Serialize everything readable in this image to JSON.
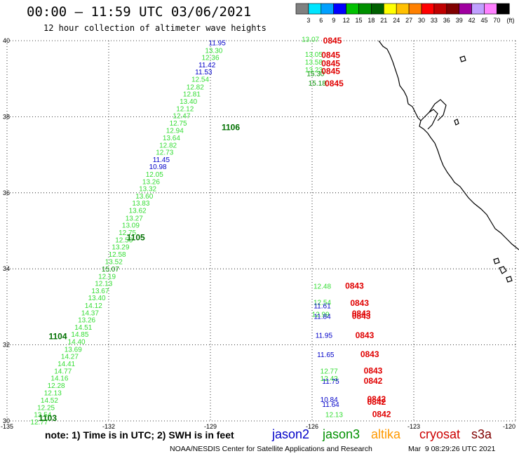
{
  "header": {
    "title": "00:00 – 11:59 UTC 03/06/2021",
    "subtitle": "12 hour collection of altimeter wave heights"
  },
  "scale_bar": {
    "labels": [
      "3",
      "6",
      "9",
      "12",
      "15",
      "18",
      "21",
      "24",
      "27",
      "30",
      "33",
      "36",
      "39",
      "42",
      "45",
      "70"
    ],
    "unit": "(ft)",
    "colors": [
      "#808080",
      "#00e5ff",
      "#00a0ff",
      "#0000ff",
      "#00c000",
      "#009000",
      "#006000",
      "#ffff00",
      "#ffc000",
      "#ff8000",
      "#ff0000",
      "#c00000",
      "#800000",
      "#a000a0",
      "#c0a0ff",
      "#ff80ff",
      "#000000"
    ]
  },
  "map": {
    "lat_ticks": [
      40,
      38,
      36,
      34,
      32,
      30
    ],
    "lon_ticks": [
      -135,
      -132,
      -129,
      -126,
      -123,
      -120
    ],
    "lat_labels": [
      "40",
      "38",
      "36",
      "34",
      "32",
      "30"
    ],
    "lon_labels": [
      "-135",
      "-132",
      "-129",
      "-126",
      "-123",
      "-120"
    ],
    "track_times": [
      {
        "text": "1106",
        "lon": -128.4,
        "lat": 37.65
      },
      {
        "text": "1105",
        "lon": -131.2,
        "lat": 34.75
      },
      {
        "text": "1104",
        "lon": -133.5,
        "lat": 32.15
      },
      {
        "text": "1103",
        "lon": -133.8,
        "lat": 30.0
      }
    ],
    "swh_track": [
      {
        "v": "11.95",
        "c": "#0000c8",
        "lon": -128.8,
        "lat": 39.88
      },
      {
        "v": "13.30",
        "c": "#33dd33",
        "lon": -128.9,
        "lat": 39.68
      },
      {
        "v": "12.36",
        "c": "#33dd33",
        "lon": -129.0,
        "lat": 39.49
      },
      {
        "v": "11.42",
        "c": "#0000c8",
        "lon": -129.1,
        "lat": 39.3
      },
      {
        "v": "11.53",
        "c": "#0000c8",
        "lon": -129.2,
        "lat": 39.11
      },
      {
        "v": "12.54",
        "c": "#33dd33",
        "lon": -129.3,
        "lat": 38.92
      },
      {
        "v": "12.82",
        "c": "#33dd33",
        "lon": -129.45,
        "lat": 38.72
      },
      {
        "v": "12.81",
        "c": "#33dd33",
        "lon": -129.55,
        "lat": 38.53
      },
      {
        "v": "13.40",
        "c": "#33dd33",
        "lon": -129.65,
        "lat": 38.34
      },
      {
        "v": "12.12",
        "c": "#33dd33",
        "lon": -129.75,
        "lat": 38.15
      },
      {
        "v": "12.47",
        "c": "#33dd33",
        "lon": -129.85,
        "lat": 37.96
      },
      {
        "v": "12.75",
        "c": "#33dd33",
        "lon": -129.95,
        "lat": 37.77
      },
      {
        "v": "12.94",
        "c": "#33dd33",
        "lon": -130.05,
        "lat": 37.57
      },
      {
        "v": "13.64",
        "c": "#33dd33",
        "lon": -130.15,
        "lat": 37.38
      },
      {
        "v": "12.82",
        "c": "#33dd33",
        "lon": -130.25,
        "lat": 37.19
      },
      {
        "v": "12.73",
        "c": "#33dd33",
        "lon": -130.35,
        "lat": 37.0
      },
      {
        "v": "11.45",
        "c": "#0000c8",
        "lon": -130.45,
        "lat": 36.81
      },
      {
        "v": "10.98",
        "c": "#0000c8",
        "lon": -130.55,
        "lat": 36.62
      },
      {
        "v": "12.05",
        "c": "#33dd33",
        "lon": -130.65,
        "lat": 36.42
      },
      {
        "v": "13.26",
        "c": "#33dd33",
        "lon": -130.75,
        "lat": 36.23
      },
      {
        "v": "13.32",
        "c": "#33dd33",
        "lon": -130.85,
        "lat": 36.04
      },
      {
        "v": "13.60",
        "c": "#33dd33",
        "lon": -130.95,
        "lat": 35.85
      },
      {
        "v": "13.83",
        "c": "#33dd33",
        "lon": -131.05,
        "lat": 35.66
      },
      {
        "v": "13.62",
        "c": "#33dd33",
        "lon": -131.15,
        "lat": 35.47
      },
      {
        "v": "13.27",
        "c": "#33dd33",
        "lon": -131.25,
        "lat": 35.27
      },
      {
        "v": "13.09",
        "c": "#33dd33",
        "lon": -131.35,
        "lat": 35.08
      },
      {
        "v": "12.75",
        "c": "#33dd33",
        "lon": -131.45,
        "lat": 34.89
      },
      {
        "v": "12.50",
        "c": "#33dd33",
        "lon": -131.55,
        "lat": 34.7
      },
      {
        "v": "13.29",
        "c": "#33dd33",
        "lon": -131.65,
        "lat": 34.51
      },
      {
        "v": "12.58",
        "c": "#33dd33",
        "lon": -131.75,
        "lat": 34.32
      },
      {
        "v": "13.52",
        "c": "#33dd33",
        "lon": -131.85,
        "lat": 34.12
      },
      {
        "v": "15.07",
        "c": "#009000",
        "lon": -131.95,
        "lat": 33.93
      },
      {
        "v": "12.19",
        "c": "#33dd33",
        "lon": -132.05,
        "lat": 33.74
      },
      {
        "v": "12.13",
        "c": "#33dd33",
        "lon": -132.15,
        "lat": 33.55
      },
      {
        "v": "13.67",
        "c": "#33dd33",
        "lon": -132.25,
        "lat": 33.36
      },
      {
        "v": "13.40",
        "c": "#33dd33",
        "lon": -132.35,
        "lat": 33.17
      },
      {
        "v": "14.12",
        "c": "#33dd33",
        "lon": -132.45,
        "lat": 32.97
      },
      {
        "v": "14.37",
        "c": "#33dd33",
        "lon": -132.55,
        "lat": 32.78
      },
      {
        "v": "13.26",
        "c": "#33dd33",
        "lon": -132.65,
        "lat": 32.59
      },
      {
        "v": "14.51",
        "c": "#33dd33",
        "lon": -132.75,
        "lat": 32.4
      },
      {
        "v": "14.85",
        "c": "#33dd33",
        "lon": -132.85,
        "lat": 32.21
      },
      {
        "v": "14.40",
        "c": "#33dd33",
        "lon": -132.95,
        "lat": 32.02
      },
      {
        "v": "13.69",
        "c": "#33dd33",
        "lon": -133.05,
        "lat": 31.82
      },
      {
        "v": "14.27",
        "c": "#33dd33",
        "lon": -133.15,
        "lat": 31.63
      },
      {
        "v": "14.41",
        "c": "#33dd33",
        "lon": -133.25,
        "lat": 31.44
      },
      {
        "v": "14.77",
        "c": "#33dd33",
        "lon": -133.35,
        "lat": 31.25
      },
      {
        "v": "14.16",
        "c": "#33dd33",
        "lon": -133.45,
        "lat": 31.06
      },
      {
        "v": "12.28",
        "c": "#33dd33",
        "lon": -133.55,
        "lat": 30.87
      },
      {
        "v": "12.13",
        "c": "#33dd33",
        "lon": -133.65,
        "lat": 30.67
      },
      {
        "v": "14.52",
        "c": "#33dd33",
        "lon": -133.75,
        "lat": 30.48
      },
      {
        "v": "12.25",
        "c": "#33dd33",
        "lon": -133.85,
        "lat": 30.29
      },
      {
        "v": "13.54",
        "c": "#33dd33",
        "lon": -133.95,
        "lat": 30.1
      },
      {
        "v": "12.77",
        "c": "#33dd33",
        "lon": -134.05,
        "lat": 29.91
      }
    ],
    "coastal_swh": [
      {
        "v": "13.07",
        "c": "#33dd33",
        "lon": -126.05,
        "lat": 39.97
      },
      {
        "v": "13.05",
        "c": "#33dd33",
        "lon": -125.95,
        "lat": 39.58
      },
      {
        "v": "13.58",
        "c": "#33dd33",
        "lon": -125.95,
        "lat": 39.37
      },
      {
        "v": "13.23",
        "c": "#33dd33",
        "lon": -125.95,
        "lat": 39.17
      },
      {
        "v": "15.30",
        "c": "#009000",
        "lon": -125.9,
        "lat": 39.07
      },
      {
        "v": "15.18",
        "c": "#009000",
        "lon": -125.85,
        "lat": 38.82
      },
      {
        "v": "12.48",
        "c": "#33dd33",
        "lon": -125.7,
        "lat": 33.48
      },
      {
        "v": "12.54",
        "c": "#33dd33",
        "lon": -125.7,
        "lat": 33.05
      },
      {
        "v": "11.61",
        "c": "#0000c8",
        "lon": -125.7,
        "lat": 32.96
      },
      {
        "v": "12.99",
        "c": "#33dd33",
        "lon": -125.75,
        "lat": 32.74
      },
      {
        "v": "11.84",
        "c": "#0000c8",
        "lon": -125.7,
        "lat": 32.68
      },
      {
        "v": "11.95",
        "c": "#0000c8",
        "lon": -125.65,
        "lat": 32.19
      },
      {
        "v": "11.65",
        "c": "#0000c8",
        "lon": -125.6,
        "lat": 31.68
      },
      {
        "v": "12.77",
        "c": "#33dd33",
        "lon": -125.5,
        "lat": 31.25
      },
      {
        "v": "12.43",
        "c": "#33dd33",
        "lon": -125.5,
        "lat": 31.05
      },
      {
        "v": "11.75",
        "c": "#0000c8",
        "lon": -125.45,
        "lat": 30.98
      },
      {
        "v": "10.84",
        "c": "#0000c8",
        "lon": -125.5,
        "lat": 30.5
      },
      {
        "v": "11.64",
        "c": "#0000c8",
        "lon": -125.45,
        "lat": 30.37
      },
      {
        "v": "12.13",
        "c": "#33dd33",
        "lon": -125.35,
        "lat": 30.1
      }
    ],
    "coastal_times": [
      {
        "text": "0845",
        "lon": -125.4,
        "lat": 39.93
      },
      {
        "text": "0845",
        "lon": -125.45,
        "lat": 39.55
      },
      {
        "text": "0845",
        "lon": -125.45,
        "lat": 39.33
      },
      {
        "text": "0845",
        "lon": -125.45,
        "lat": 39.12
      },
      {
        "text": "0845",
        "lon": -125.35,
        "lat": 38.8
      },
      {
        "text": "0843",
        "lon": -124.75,
        "lat": 33.48
      },
      {
        "text": "0843",
        "lon": -124.6,
        "lat": 33.03
      },
      {
        "text": "0843",
        "lon": -124.55,
        "lat": 32.75
      },
      {
        "text": "0843",
        "lon": -124.55,
        "lat": 32.68
      },
      {
        "text": "0843",
        "lon": -124.45,
        "lat": 32.18
      },
      {
        "text": "0843",
        "lon": -124.3,
        "lat": 31.68
      },
      {
        "text": "0843",
        "lon": -124.2,
        "lat": 31.25
      },
      {
        "text": "0842",
        "lon": -124.2,
        "lat": 30.98
      },
      {
        "text": "0842",
        "lon": -124.1,
        "lat": 30.5
      },
      {
        "text": "0842",
        "lon": -124.1,
        "lat": 30.42
      },
      {
        "text": "0842",
        "lon": -123.95,
        "lat": 30.1
      }
    ]
  },
  "legend": {
    "note": "note: 1) Time is in UTC; 2) SWH is in feet",
    "jason2": "jason2",
    "jason3": "jason3",
    "altika": "altika",
    "cryosat": "cryosat",
    "s3a": "s3a",
    "colors": {
      "jason2": "#0000c8",
      "jason3": "#009000",
      "altika": "#ff9900",
      "cryosat": "#cc0000",
      "s3a": "#800000"
    }
  },
  "footer": {
    "credit": "NOAA/NESDIS Center for Satellite Applications and Research",
    "timestamp": "Mar  9 08:29:26 UTC 2021"
  }
}
